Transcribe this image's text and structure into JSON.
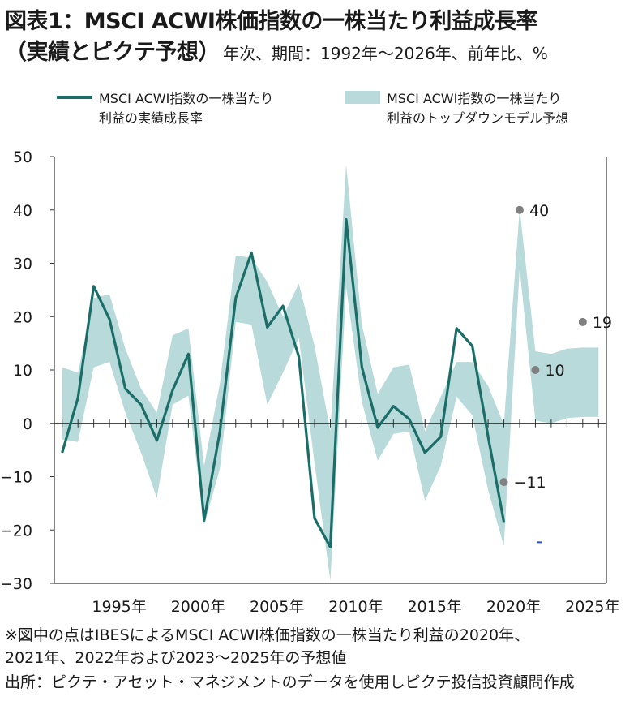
{
  "title": {
    "line1": "図表1：MSCI ACWI株価指数の一株当たり利益成長率",
    "line2_main": "（実績とピクテ予想）",
    "line2_sub": "年次、期間：1992年～2026年、前年比、%"
  },
  "legend": {
    "actual": {
      "line1": "MSCI ACWI指数の一株当たり",
      "line2": "利益の実績成長率"
    },
    "model": {
      "line1": "MSCI ACWI指数の一株当たり",
      "line2": "利益のトップダウンモデル予想"
    }
  },
  "notes": {
    "line1": "※図中の点はIBESによるMSCI ACWI株価指数の一株当たり利益の2020年、",
    "line2": "2021年、2022年および2023～2025年の予想値",
    "line3": "出所：ピクテ・アセット・マネジメントのデータを使用しピクテ投信投資顧問作成"
  },
  "colors": {
    "actual_line": "#1a6e67",
    "band": "#b9dadb",
    "points": "#808080",
    "axis": "#333333",
    "blue_mark": "#2b4fc4"
  },
  "chart_data": {
    "type": "line",
    "ylim": [
      -30,
      50
    ],
    "xlim": [
      1991.5,
      2026.5
    ],
    "yticks": [
      50,
      40,
      30,
      20,
      10,
      0,
      -10,
      -20,
      -30
    ],
    "ytick_labels": [
      "50",
      "40",
      "30",
      "20",
      "10",
      "0",
      "−10",
      "−20",
      "−30"
    ],
    "xtick_labels": [
      {
        "year": 1995,
        "label": "1995年"
      },
      {
        "year": 2000,
        "label": "2000年"
      },
      {
        "year": 2005,
        "label": "2005年"
      },
      {
        "year": 2010,
        "label": "2010年"
      },
      {
        "year": 2015,
        "label": "2015年"
      },
      {
        "year": 2020,
        "label": "2020年"
      },
      {
        "year": 2025,
        "label": "2025年"
      }
    ],
    "series": [
      {
        "name": "MSCI ACWI指数の一株当たり利益の実績成長率",
        "x": [
          1992,
          1993,
          1994,
          1995,
          1996,
          1997,
          1998,
          1999,
          2000,
          2001,
          2002,
          2003,
          2004,
          2005,
          2006,
          2007,
          2008,
          2009,
          2010,
          2011,
          2012,
          2013,
          2014,
          2015,
          2016,
          2017,
          2018,
          2019,
          2020
        ],
        "y": [
          -5.5,
          4.8,
          25.7,
          19.5,
          6.5,
          3.5,
          -3.2,
          6.2,
          13,
          -18.2,
          -1.5,
          23.5,
          32,
          18,
          22,
          12.5,
          -17.8,
          -23.2,
          38.2,
          10.5,
          -0.8,
          3.2,
          0.8,
          -5.5,
          -2.5,
          17.8,
          14.5,
          -2.5,
          -18.5
        ]
      },
      {
        "name": "MSCI ACWI指数の一株当たり利益のトップダウンモデル予想",
        "x": [
          1992,
          1993,
          1994,
          1995,
          1996,
          1997,
          1998,
          1999,
          2000,
          2001,
          2002,
          2003,
          2004,
          2005,
          2006,
          2007,
          2008,
          2009,
          2010,
          2011,
          2012,
          2013,
          2014,
          2015,
          2016,
          2017,
          2018,
          2019,
          2020,
          2021,
          2022,
          2023,
          2024,
          2025,
          2026
        ],
        "upper": [
          10.5,
          9.5,
          23.5,
          24.2,
          14,
          6.5,
          2,
          16.5,
          17.8,
          -8,
          7.5,
          31.5,
          31,
          26.5,
          20,
          26.2,
          14.5,
          -1.5,
          48.5,
          18.5,
          5.5,
          10.5,
          11,
          -1.5,
          5,
          11.5,
          11.5,
          7,
          -0.2,
          40.2,
          13.5,
          13,
          14,
          14.2,
          14.2
        ],
        "lower": [
          -3,
          -3.5,
          10.5,
          11.5,
          2,
          -5.5,
          -14,
          3.5,
          5.2,
          -19,
          -8.5,
          19,
          18.5,
          3.5,
          9.5,
          16,
          -7.5,
          -29.5,
          25.5,
          4,
          -7,
          -2,
          -1.5,
          -14.5,
          -8,
          5,
          1.5,
          -12.5,
          -23,
          29,
          0.5,
          0,
          1,
          1.2,
          1.2
        ]
      },
      {
        "name": "IBES予想",
        "type": "scatter",
        "x": [
          2020,
          2021,
          2022,
          2025
        ],
        "y": [
          -11,
          40,
          10,
          19
        ],
        "labels": [
          "−11",
          "40",
          "10",
          "19"
        ]
      }
    ]
  }
}
